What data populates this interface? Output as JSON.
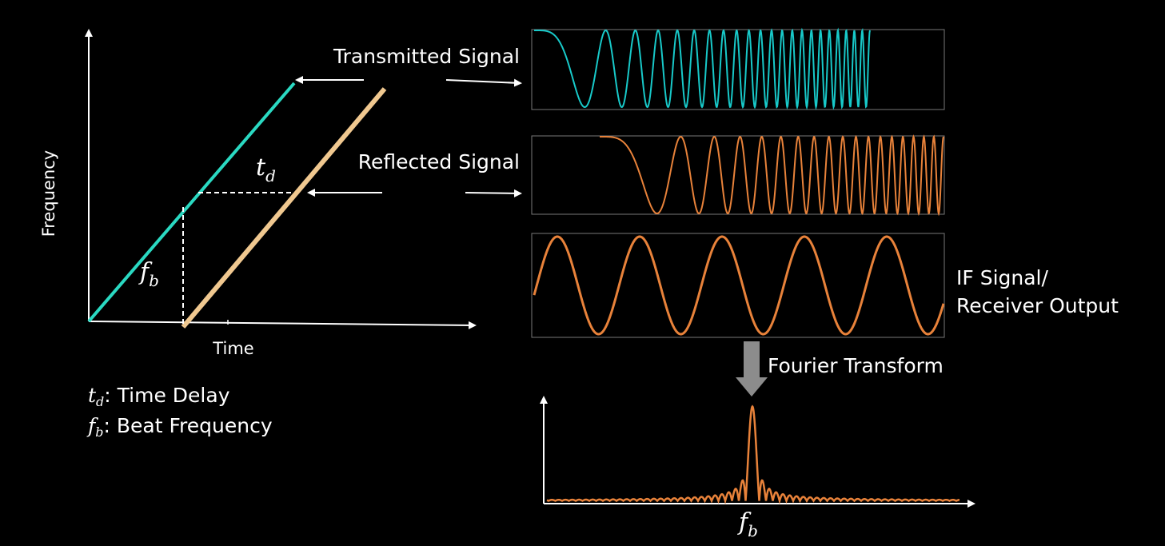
{
  "left_panel": {
    "y_axis_label": "Frequency",
    "x_axis_label": "Time",
    "td_symbol": "t",
    "td_sub": "d",
    "fb_symbol": "f",
    "fb_sub": "b"
  },
  "legend": {
    "td": {
      "symbol": "t",
      "sub": "d",
      "text": ": Time Delay"
    },
    "fb": {
      "symbol": "f",
      "sub": "b",
      "text": ": Beat Frequency"
    }
  },
  "labels": {
    "transmitted": "Transmitted Signal",
    "reflected": "Reflected Signal",
    "if_line1": "IF Signal/",
    "if_line2": "Receiver Output",
    "fourier": "Fourier Transform",
    "fb_symbol": "f",
    "fb_sub": "b"
  },
  "colors": {
    "transmitted": "#2ad9c2",
    "reflected": "#f0c890",
    "wave_transmitted": "#18c9c9",
    "wave_orange": "#e8823a",
    "axis": "#ffffff",
    "panel_border": "#777777",
    "arrow_block": "#8c8c8c"
  }
}
